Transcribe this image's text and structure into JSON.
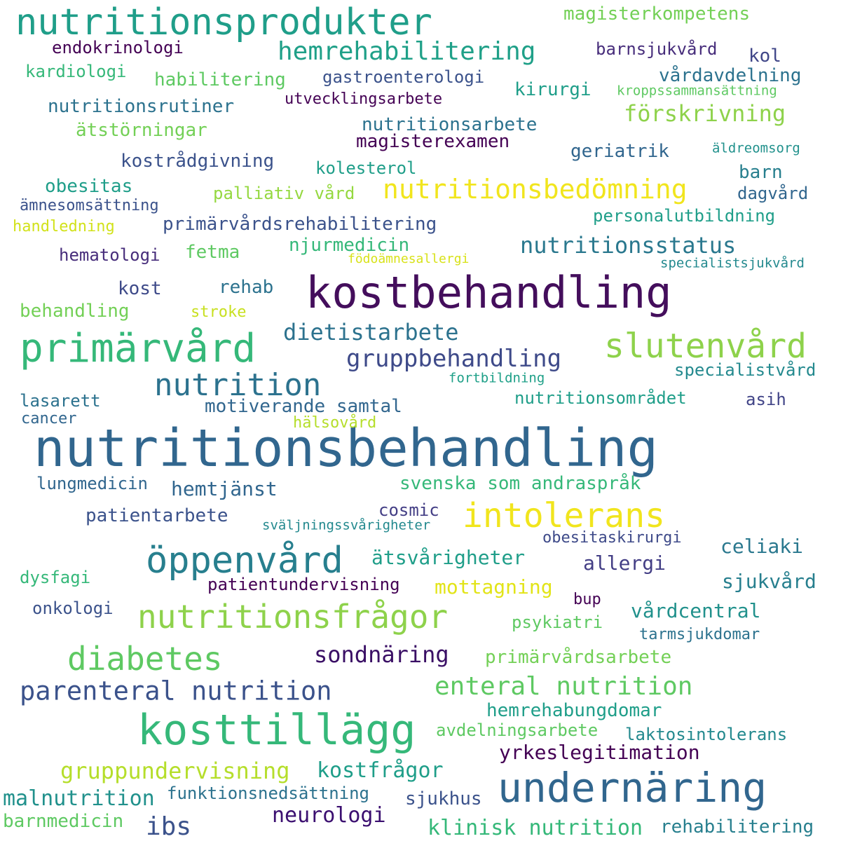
{
  "words": [
    {
      "text": "nutritionsbehandling",
      "color": "#31668e"
    },
    {
      "text": "kostbehandling",
      "color": "#440e5c"
    },
    {
      "text": "primärvård",
      "color": "#35b879"
    },
    {
      "text": "slutenvård",
      "color": "#8ed24b"
    },
    {
      "text": "nutrition",
      "color": "#2c728e"
    },
    {
      "text": "kosttillägg",
      "color": "#35b879"
    },
    {
      "text": "undernäring",
      "color": "#31668e"
    },
    {
      "text": "öppenvård",
      "color": "#277f8e"
    },
    {
      "text": "nutritionsprodukter",
      "color": "#1f9e89"
    },
    {
      "text": "intolerans",
      "color": "#f1e51d"
    },
    {
      "text": "nutritionsbedömning",
      "color": "#f1e51d"
    },
    {
      "text": "nutritionsfrågor",
      "color": "#8ed24b"
    },
    {
      "text": "diabetes",
      "color": "#5ec962"
    },
    {
      "text": "parenteral nutrition",
      "color": "#3b528b"
    },
    {
      "text": "enteral nutrition",
      "color": "#5ec962"
    },
    {
      "text": "hemrehabilitering",
      "color": "#1fa088"
    },
    {
      "text": "gruppbehandling",
      "color": "#3e4a89"
    },
    {
      "text": "dietistarbete",
      "color": "#2c728e"
    },
    {
      "text": "nutritionsstatus",
      "color": "#2a788e"
    },
    {
      "text": "sondnäring",
      "color": "#3a0f65"
    },
    {
      "text": "förskrivning",
      "color": "#8ed24b"
    },
    {
      "text": "motiverande samtal",
      "color": "#31668e"
    },
    {
      "text": "svenska som andraspråk",
      "color": "#35b879"
    },
    {
      "text": "gruppundervisning",
      "color": "#b5de2b"
    },
    {
      "text": "kostfrågor",
      "color": "#1f9e89"
    },
    {
      "text": "yrkeslegitimation",
      "color": "#440154"
    },
    {
      "text": "klinisk nutrition",
      "color": "#35b879"
    },
    {
      "text": "rehabilitering",
      "color": "#277f8e"
    },
    {
      "text": "malnutrition",
      "color": "#21918c"
    },
    {
      "text": "neurologi",
      "color": "#3b0f70"
    },
    {
      "text": "ibs",
      "color": "#3b528b"
    },
    {
      "text": "hemtjänst",
      "color": "#31668e"
    },
    {
      "text": "ätsvårigheter",
      "color": "#1f9e89"
    },
    {
      "text": "allergi",
      "color": "#433e85"
    },
    {
      "text": "celiaki",
      "color": "#2a788e"
    },
    {
      "text": "sjukvård",
      "color": "#277f8e"
    },
    {
      "text": "mottagning",
      "color": "#e2e418"
    },
    {
      "text": "vårdcentral",
      "color": "#21918c"
    },
    {
      "text": "primärvårdsarbete",
      "color": "#73d056"
    },
    {
      "text": "hemrehabungdomar",
      "color": "#1f9e89"
    },
    {
      "text": "avdelningsarbete",
      "color": "#5ec962"
    },
    {
      "text": "laktosintolerans",
      "color": "#23898e"
    },
    {
      "text": "funktionsnedsättning",
      "color": "#2c728e"
    },
    {
      "text": "sjukhus",
      "color": "#3b528b"
    },
    {
      "text": "barnmedicin",
      "color": "#5ec962"
    },
    {
      "text": "magisterkompetens",
      "color": "#73d056"
    },
    {
      "text": "endokrinologi",
      "color": "#440154"
    },
    {
      "text": "barnsjukvård",
      "color": "#472d7b"
    },
    {
      "text": "kol",
      "color": "#404688"
    },
    {
      "text": "kardiologi",
      "color": "#35b879"
    },
    {
      "text": "habilitering",
      "color": "#5ec962"
    },
    {
      "text": "gastroenterologi",
      "color": "#3b528b"
    },
    {
      "text": "vårdavdelning",
      "color": "#2c728e"
    },
    {
      "text": "kirurgi",
      "color": "#1f9e89"
    },
    {
      "text": "kroppssammansättning",
      "color": "#5ec962"
    },
    {
      "text": "nutritionsrutiner",
      "color": "#2c728e"
    },
    {
      "text": "utvecklingsarbete",
      "color": "#440154"
    },
    {
      "text": "ätstörningar",
      "color": "#73d056"
    },
    {
      "text": "nutritionsarbete",
      "color": "#2c728e"
    },
    {
      "text": "magisterexamen",
      "color": "#440154"
    },
    {
      "text": "geriatrik",
      "color": "#31668e"
    },
    {
      "text": "äldreomsorg",
      "color": "#21918c"
    },
    {
      "text": "kostrådgivning",
      "color": "#3b528b"
    },
    {
      "text": "kolesterol",
      "color": "#1f9e89"
    },
    {
      "text": "barn",
      "color": "#277f8e"
    },
    {
      "text": "obesitas",
      "color": "#1f9e89"
    },
    {
      "text": "palliativ vård",
      "color": "#95d840"
    },
    {
      "text": "dagvård",
      "color": "#31668e"
    },
    {
      "text": "ämnesomsättning",
      "color": "#3b528b"
    },
    {
      "text": "personalutbildning",
      "color": "#1f9e89"
    },
    {
      "text": "handledning",
      "color": "#d2e21b"
    },
    {
      "text": "primärvårdsrehabilitering",
      "color": "#3b528b"
    },
    {
      "text": "fetma",
      "color": "#5ec962"
    },
    {
      "text": "njurmedicin",
      "color": "#35b879"
    },
    {
      "text": "hematologi",
      "color": "#472d7b"
    },
    {
      "text": "födoämnesallergi",
      "color": "#d8e219"
    },
    {
      "text": "specialistsjukvård",
      "color": "#23898e"
    },
    {
      "text": "kost",
      "color": "#3e4a89"
    },
    {
      "text": "rehab",
      "color": "#2c728e"
    },
    {
      "text": "behandling",
      "color": "#73d056"
    },
    {
      "text": "stroke",
      "color": "#c8e020"
    },
    {
      "text": "specialistvård",
      "color": "#23898e"
    },
    {
      "text": "fortbildning",
      "color": "#1fa088"
    },
    {
      "text": "nutritionsområdet",
      "color": "#1f9e89"
    },
    {
      "text": "asih",
      "color": "#414487"
    },
    {
      "text": "lasarett",
      "color": "#2c728e"
    },
    {
      "text": "cancer",
      "color": "#31668e"
    },
    {
      "text": "hälsovård",
      "color": "#b5de2b"
    },
    {
      "text": "lungmedicin",
      "color": "#31668e"
    },
    {
      "text": "patientarbete",
      "color": "#3b528b"
    },
    {
      "text": "cosmic",
      "color": "#433e85"
    },
    {
      "text": "sväljningssvårigheter",
      "color": "#23898e"
    },
    {
      "text": "obesitaskirurgi",
      "color": "#3e4a89"
    },
    {
      "text": "dysfagi",
      "color": "#35b879"
    },
    {
      "text": "patientundervisning",
      "color": "#440154"
    },
    {
      "text": "bup",
      "color": "#440154"
    },
    {
      "text": "onkologi",
      "color": "#3b528b"
    },
    {
      "text": "psykiatri",
      "color": "#5ec962"
    },
    {
      "text": "tarmsjukdomar",
      "color": "#2c728e"
    }
  ]
}
